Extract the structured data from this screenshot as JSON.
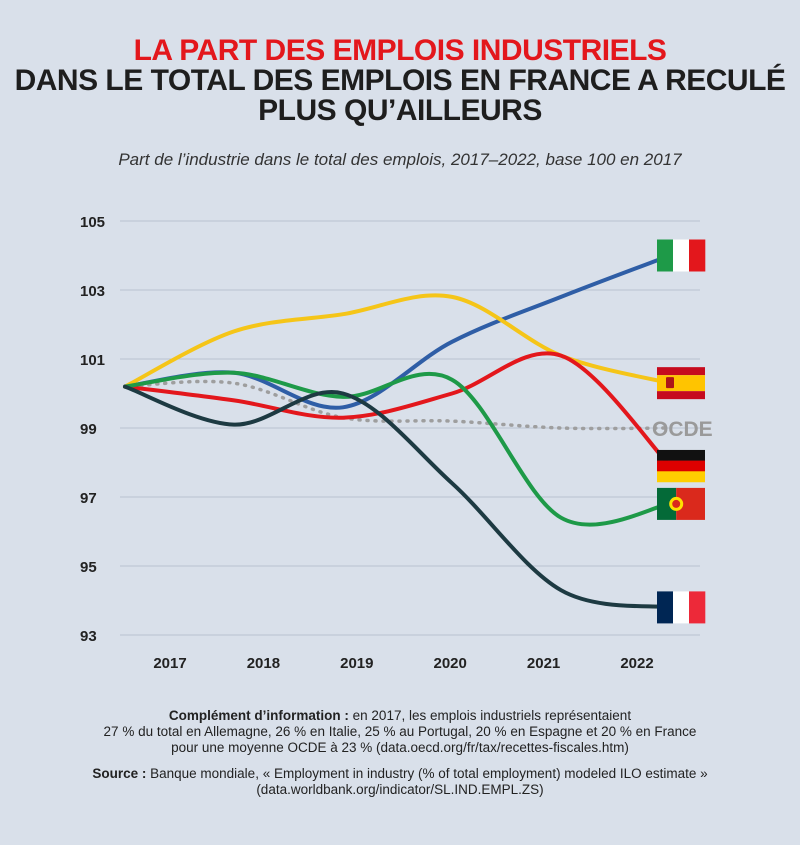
{
  "header": {
    "title_line1": "LA PART DES EMPLOIS INDUSTRIELS",
    "title_line2": "DANS LE TOTAL DES EMPLOIS EN FRANCE A RECULÉ",
    "title_line3": "PLUS QU’AILLEURS",
    "subtitle": "Part de l’industrie dans le total des emplois, 2017–2022, base 100 en 2017"
  },
  "chart_data": {
    "type": "line",
    "x": [
      "2017",
      "2018",
      "2019",
      "2020",
      "2021",
      "2022"
    ],
    "ylim": [
      93,
      105
    ],
    "yticks": [
      "105",
      "103",
      "101",
      "99",
      "97",
      "95",
      "93"
    ],
    "grid": "horizontal",
    "series": [
      {
        "key": "italie",
        "color": "#2f5ea6",
        "values": [
          100.2,
          100.6,
          99.6,
          101.5,
          102.8,
          104.0
        ]
      },
      {
        "key": "espagne",
        "color": "#f5c518",
        "values": [
          100.2,
          101.8,
          102.3,
          102.8,
          101.1,
          100.3
        ]
      },
      {
        "key": "ocde",
        "color": "#9e9e9e",
        "dashed": true,
        "label": "OCDE",
        "values": [
          100.2,
          100.3,
          99.3,
          99.2,
          99.0,
          99.0
        ]
      },
      {
        "key": "allemagne",
        "color": "#e3171c",
        "values": [
          100.2,
          99.8,
          99.3,
          100.0,
          101.1,
          97.9
        ]
      },
      {
        "key": "portugal",
        "color": "#1e9a48",
        "values": [
          100.2,
          100.6,
          99.9,
          100.4,
          96.4,
          96.8
        ]
      },
      {
        "key": "france",
        "color": "#1d3a42",
        "values": [
          100.2,
          99.1,
          100.0,
          97.4,
          94.3,
          93.8
        ]
      }
    ]
  },
  "notes": {
    "complement_label": "Complément d’information :",
    "complement_text_1": " en 2017, les emplois industriels représentaient",
    "complement_text_2": "27 % du total en Allemagne, 26 % en Italie, 25 % au Portugal, 20 % en Espagne et 20 % en France",
    "complement_text_3": "pour une moyenne OCDE à 23 % (data.oecd.org/fr/tax/recettes-fiscales.htm)",
    "source_label": "Source :",
    "source_text_1": " Banque mondiale, « Employment in industry (% of total employment) modeled ILO estimate »",
    "source_text_2": "(data.worldbank.org/indicator/SL.IND.EMPL.ZS)"
  },
  "flags": [
    {
      "name": "italie",
      "colors": [
        "#1e9a48",
        "#ffffff",
        "#e3171c"
      ],
      "orientation": "vertical"
    },
    {
      "name": "espagne",
      "colors": [
        "#c60b1e",
        "#ffc400",
        "#c60b1e"
      ],
      "orientation": "horizontal"
    },
    {
      "name": "allemagne",
      "colors": [
        "#111111",
        "#dd0000",
        "#ffce00"
      ],
      "orientation": "horizontal"
    },
    {
      "name": "portugal",
      "colors": [
        "#046a38",
        "#da291c"
      ],
      "orientation": "split"
    },
    {
      "name": "france",
      "colors": [
        "#002654",
        "#ffffff",
        "#ed2939"
      ],
      "orientation": "vertical"
    }
  ]
}
